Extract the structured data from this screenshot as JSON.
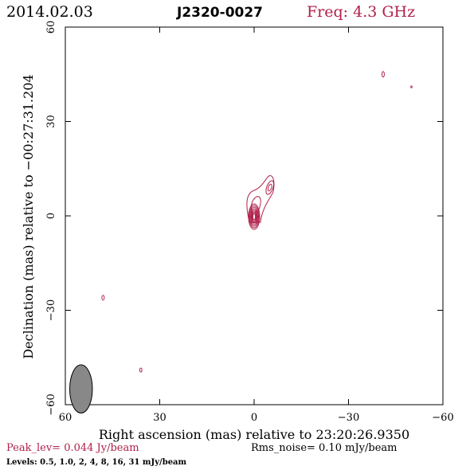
{
  "header": {
    "date": "2014.02.03",
    "source": "J2320-0027",
    "frequency": "Freq: 4.3 GHz"
  },
  "footer": {
    "peak_level": "Peak_lev=  0.044 Jy/beam",
    "rms_noise": "Rms_noise= 0.10 mJy/beam",
    "levels": "Levels: 0.5, 1.0,   2,   4,   8,  16,  31 mJy/beam"
  },
  "colors": {
    "contour": "#b0204a",
    "beam_fill": "#888888",
    "axis": "#000000"
  },
  "chart_data": {
    "type": "contour",
    "xlabel": "Right ascension (mas) relative to 23:20:26.9350",
    "ylabel": "Declination (mas) relative to −00:27:31.204",
    "xlim": [
      60,
      -60
    ],
    "ylim": [
      -60,
      60
    ],
    "x_ticks": [
      60,
      30,
      0,
      -30,
      -60
    ],
    "y_ticks": [
      -60,
      -30,
      0,
      30,
      60
    ],
    "x_tick_labels": [
      "60",
      "30",
      "0",
      "−30",
      "−60"
    ],
    "y_tick_labels": [
      "−60",
      "−30",
      "0",
      "30",
      "60"
    ],
    "contour_levels_mJy": [
      0.5,
      1.0,
      2,
      4,
      8,
      16,
      31
    ],
    "peak_Jy_per_beam": 0.044,
    "rms_noise_mJy_per_beam": 0.1,
    "core": {
      "x": 0,
      "y": 0
    },
    "jet_knot": {
      "x": -5,
      "y": 9
    },
    "isolated_components": [
      {
        "x": -41,
        "y": 45
      },
      {
        "x": -50,
        "y": 41
      },
      {
        "x": 48,
        "y": -26
      },
      {
        "x": 36,
        "y": -49
      }
    ],
    "beam": {
      "x": 55,
      "y": -55,
      "major_mas": 8.5,
      "minor_mas": 4.0
    }
  }
}
